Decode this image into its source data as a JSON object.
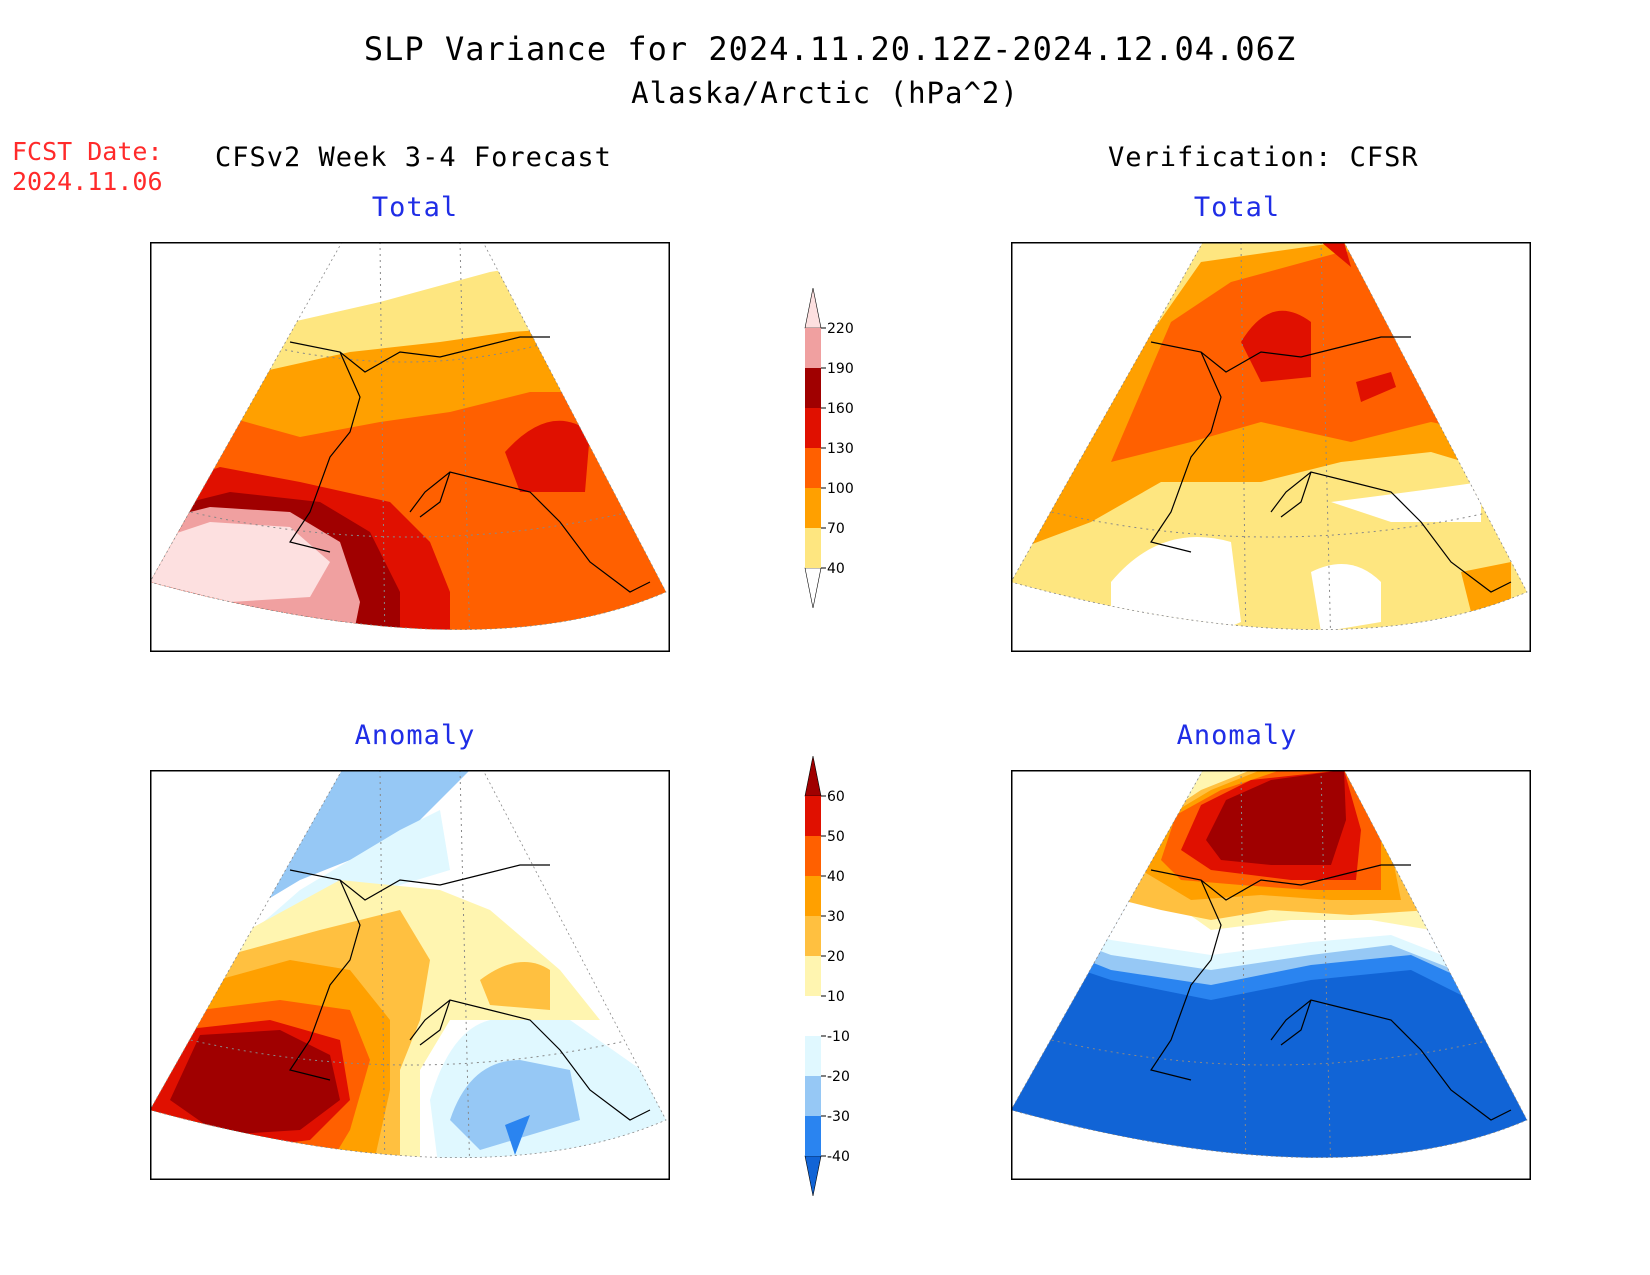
{
  "header": {
    "title": "SLP Variance for 2024.11.20.12Z-2024.12.04.06Z",
    "subtitle": "Alaska/Arctic (hPa^2)",
    "fcst_date_label": "FCST Date:",
    "fcst_date_value": "2024.11.06",
    "left_column_title": "CFSv2 Week 3-4 Forecast",
    "right_column_title": "Verification: CFSR"
  },
  "panels": {
    "forecast_total_label": "Total",
    "verification_total_label": "Total",
    "forecast_anomaly_label": "Anomaly",
    "verification_anomaly_label": "Anomaly"
  },
  "colorbars": {
    "total": {
      "ticks": [
        "40",
        "70",
        "100",
        "130",
        "160",
        "190",
        "220"
      ],
      "colors": [
        "#ffffff",
        "#fee680",
        "#ffa000",
        "#ff6000",
        "#e01000",
        "#a00000",
        "#f0a0a0",
        "#fde0e0"
      ]
    },
    "anomaly": {
      "ticks": [
        "-40",
        "-30",
        "-20",
        "-10",
        "10",
        "20",
        "30",
        "40",
        "50",
        "60"
      ],
      "colors": [
        "#1164d6",
        "#2a84f0",
        "#96c8f5",
        "#e0f8ff",
        "#ffffff",
        "#fff5b0",
        "#ffc040",
        "#ffa000",
        "#ff6000",
        "#e01000",
        "#a00000"
      ]
    }
  }
}
